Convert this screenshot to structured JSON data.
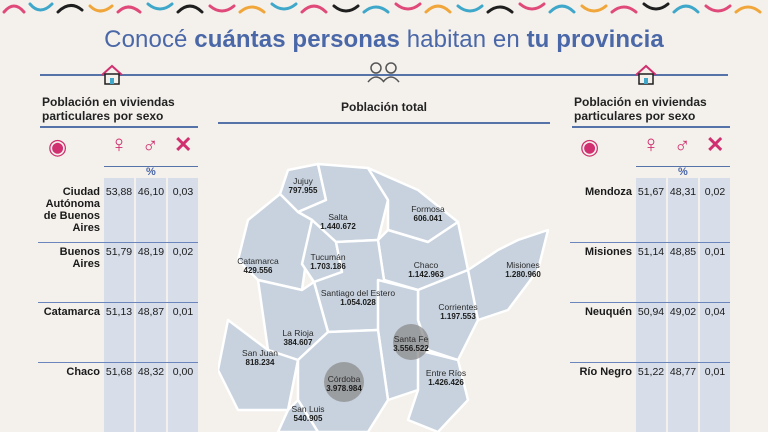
{
  "title": {
    "part1": "Conocé ",
    "part2": "cuántas personas",
    "part3": " habitan en ",
    "part4": "tu provincia"
  },
  "left_panel": {
    "heading": "Población en viviendas particulares por sexo",
    "pct": "%"
  },
  "right_panel": {
    "heading": "Población en viviendas particulares por sexo",
    "pct": "%"
  },
  "center": {
    "heading": "Población total"
  },
  "icons": {
    "pin": "location-pin-icon",
    "female": "female-symbol-icon",
    "male": "male-symbol-icon",
    "x": "x-symbol-icon"
  },
  "colors": {
    "accent": "#4a67a8",
    "pink": "#d0306f",
    "column": "#d7dee9",
    "map_fill": "#c7d2de",
    "map_stroke": "#ffffff"
  },
  "left_rows": [
    {
      "name": "Ciudad Autónoma de Buenos Aires",
      "f": "53,88",
      "m": "46,10",
      "x": "0,03"
    },
    {
      "name": "Buenos Aires",
      "f": "51,79",
      "m": "48,19",
      "x": "0,02"
    },
    {
      "name": "Catamarca",
      "f": "51,13",
      "m": "48,87",
      "x": "0,01"
    },
    {
      "name": "Chaco",
      "f": "51,68",
      "m": "48,32",
      "x": "0,00"
    }
  ],
  "right_rows": [
    {
      "name": "Mendoza",
      "f": "51,67",
      "m": "48,31",
      "x": "0,02"
    },
    {
      "name": "Misiones",
      "f": "51,14",
      "m": "48,85",
      "x": "0,01"
    },
    {
      "name": "Neuquén",
      "f": "50,94",
      "m": "49,02",
      "x": "0,04"
    },
    {
      "name": "Río Negro",
      "f": "51,22",
      "m": "48,77",
      "x": "0,01"
    }
  ],
  "provinces": [
    {
      "name": "Jujuy",
      "value": "797.955"
    },
    {
      "name": "Salta",
      "value": "1.440.672"
    },
    {
      "name": "Formosa",
      "value": "606.041"
    },
    {
      "name": "Catamarca",
      "value": "429.556"
    },
    {
      "name": "Tucumán",
      "value": "1.703.186"
    },
    {
      "name": "Chaco",
      "value": "1.142.963"
    },
    {
      "name": "Misiones",
      "value": "1.280.960"
    },
    {
      "name": "Santiago del Estero",
      "value": "1.054.028"
    },
    {
      "name": "Corrientes",
      "value": "1.197.553"
    },
    {
      "name": "La Rioja",
      "value": "384.607"
    },
    {
      "name": "Santa Fe",
      "value": "3.556.522"
    },
    {
      "name": "San Juan",
      "value": "818.234"
    },
    {
      "name": "Entre Ríos",
      "value": "1.426.426"
    },
    {
      "name": "Córdoba",
      "value": "3.978.984"
    },
    {
      "name": "San Luis",
      "value": "540.905"
    }
  ]
}
